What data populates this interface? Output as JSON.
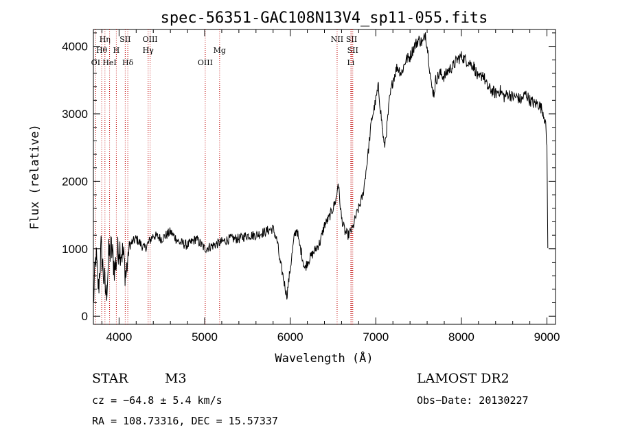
{
  "chart_data": {
    "type": "line",
    "title": "spec-56351-GAC108N13V4_sp11-055.fits",
    "xlabel": "Wavelength (Å)",
    "ylabel": "Flux (relative)",
    "xlim": [
      3700,
      9100
    ],
    "ylim": [
      -120,
      4250
    ],
    "xticks": [
      4000,
      5000,
      6000,
      7000,
      8000,
      9000
    ],
    "yticks": [
      0,
      1000,
      2000,
      3000,
      4000
    ],
    "xtick_labels": [
      "4000",
      "5000",
      "6000",
      "7000",
      "8000",
      "9000"
    ],
    "ytick_labels": [
      "0",
      "1000",
      "2000",
      "3000",
      "4000"
    ],
    "series": [
      {
        "x": [
          3700,
          3730,
          3760,
          3790,
          3820,
          3850,
          3880,
          3910,
          3950,
          4000,
          4050,
          4080,
          4120,
          4200,
          4300,
          4400,
          4500,
          4600,
          4700,
          4800,
          4900,
          5000,
          5100,
          5200,
          5300,
          5400,
          5500,
          5600,
          5700,
          5800,
          5850,
          5880,
          5900,
          5930,
          5960,
          6000,
          6050,
          6080,
          6100,
          6130,
          6170,
          6200,
          6250,
          6300,
          6350,
          6400,
          6450,
          6500,
          6540,
          6560,
          6580,
          6600,
          6640,
          6680,
          6700,
          6730,
          6760,
          6800,
          6850,
          6900,
          6950,
          7000,
          7030,
          7060,
          7100,
          7130,
          7160,
          7200,
          7250,
          7300,
          7350,
          7400,
          7450,
          7500,
          7550,
          7580,
          7600,
          7620,
          7650,
          7680,
          7700,
          7750,
          7800,
          7850,
          7900,
          7950,
          8000,
          8050,
          8100,
          8150,
          8200,
          8250,
          8300,
          8350,
          8400,
          8450,
          8500,
          8550,
          8600,
          8650,
          8700,
          8750,
          8800,
          8850,
          8900,
          8950,
          8980,
          9000,
          9010
        ],
        "y": [
          200,
          900,
          400,
          1000,
          600,
          300,
          900,
          1000,
          700,
          1050,
          900,
          600,
          1050,
          1150,
          1000,
          1200,
          1150,
          1250,
          1100,
          1050,
          1150,
          1000,
          1050,
          1100,
          1150,
          1150,
          1200,
          1200,
          1250,
          1300,
          1100,
          800,
          700,
          500,
          300,
          700,
          1200,
          1300,
          1100,
          950,
          700,
          800,
          900,
          1000,
          1100,
          1350,
          1450,
          1600,
          1750,
          2000,
          1700,
          1450,
          1250,
          1200,
          1250,
          1300,
          1450,
          1600,
          1800,
          2300,
          2900,
          3200,
          3400,
          3000,
          2500,
          2800,
          3200,
          3500,
          3700,
          3600,
          3800,
          3850,
          4000,
          4100,
          4050,
          4200,
          4000,
          3800,
          3400,
          3300,
          3500,
          3600,
          3550,
          3650,
          3700,
          3800,
          3850,
          3800,
          3750,
          3700,
          3500,
          3600,
          3400,
          3350,
          3300,
          3350,
          3250,
          3300,
          3250,
          3250,
          3200,
          3300,
          3200,
          3150,
          3150,
          3050,
          2900,
          2500,
          1000
        ]
      }
    ],
    "line_markers": [
      {
        "label": "OI",
        "x": 3727,
        "row": 3
      },
      {
        "label": "Hθ",
        "x": 3797,
        "row": 2
      },
      {
        "label": "Hη",
        "x": 3835,
        "row": 1
      },
      {
        "label": "HeI",
        "x": 3889,
        "row": 3
      },
      {
        "label": "H",
        "x": 3968,
        "row": 2
      },
      {
        "label": "SII",
        "x": 4072,
        "row": 1
      },
      {
        "label": "Hδ",
        "x": 4102,
        "row": 3
      },
      {
        "label": "OIII",
        "x": 4363,
        "row": 1
      },
      {
        "label": "Hγ",
        "x": 4340,
        "row": 2
      },
      {
        "label": "OIII",
        "x": 5007,
        "row": 3
      },
      {
        "label": "Mg",
        "x": 5175,
        "row": 2
      },
      {
        "label": "NII",
        "x": 6548,
        "row": 1
      },
      {
        "label": "SII",
        "x": 6717,
        "row": 1
      },
      {
        "label": "SII",
        "x": 6731,
        "row": 2
      },
      {
        "label": "Li",
        "x": 6708,
        "row": 3
      }
    ]
  },
  "info": {
    "class_label": "STAR",
    "subclass_label": "M3",
    "survey_label": "LAMOST DR2",
    "cz_text": "cz = −64.8 ± 5.4 km/s",
    "obsdate_text": "Obs−Date: 20130227",
    "radec_text": "RA = 108.73316, DEC =  15.57337"
  }
}
